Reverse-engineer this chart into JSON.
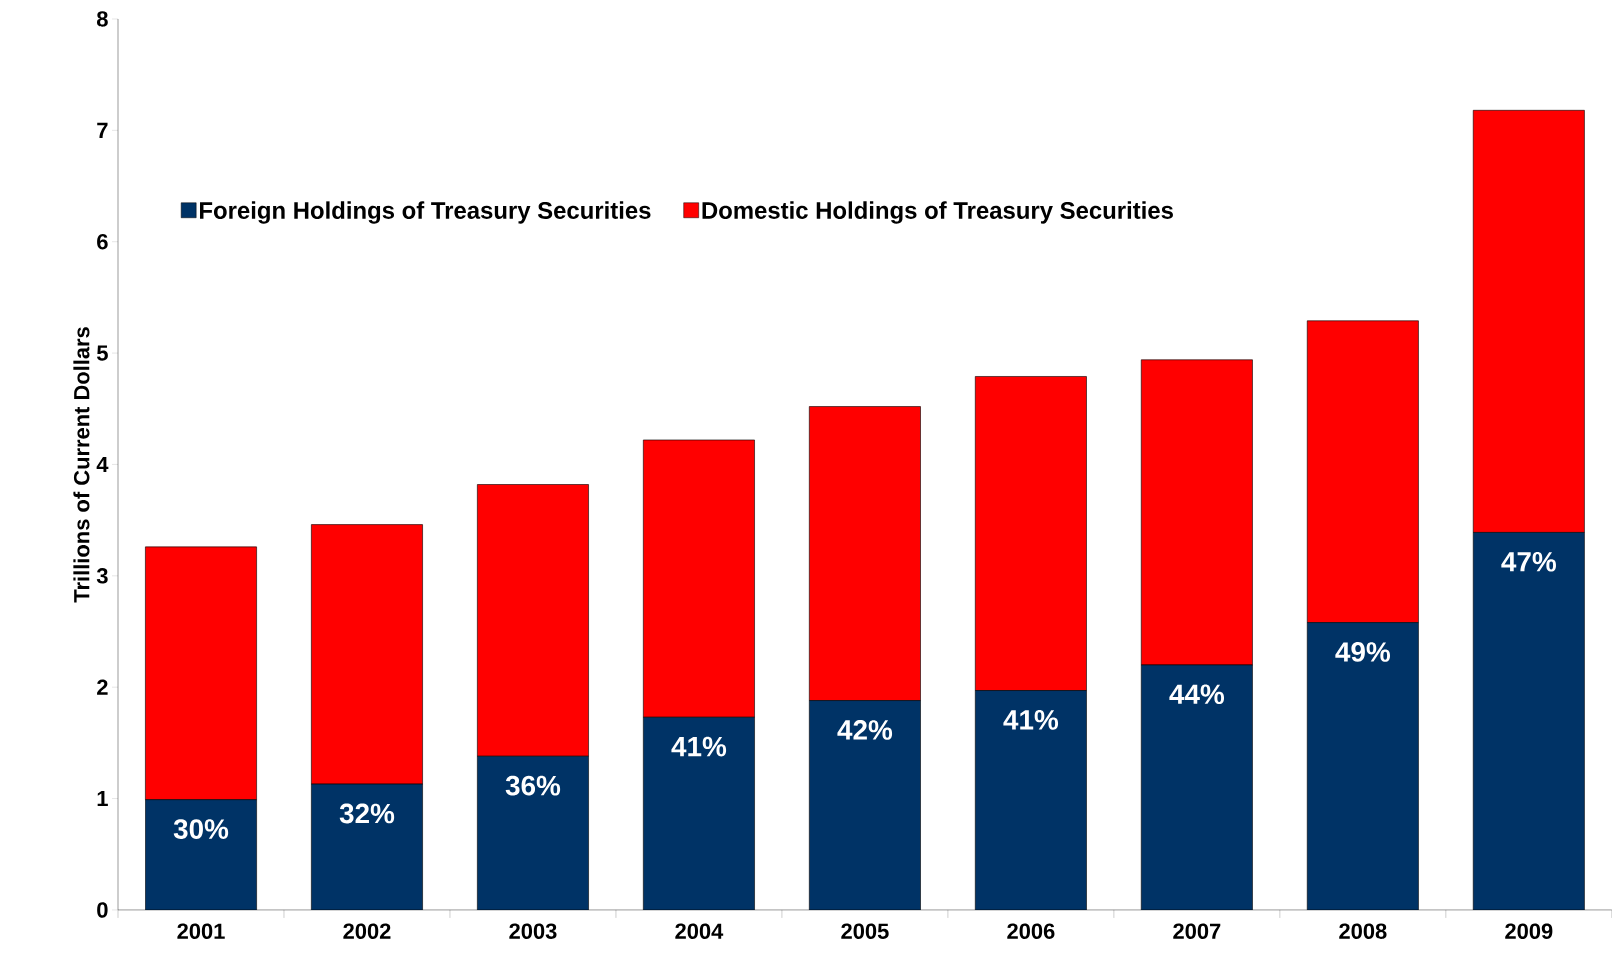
{
  "chart_data": {
    "type": "bar",
    "stacked": true,
    "ylabel": "Trillions of Current Dollars",
    "categories": [
      "2001",
      "2002",
      "2003",
      "2004",
      "2005",
      "2006",
      "2007",
      "2008",
      "2009"
    ],
    "series": [
      {
        "name": "Foreign Holdings of Treasury Securities",
        "color": "#003366",
        "values": [
          0.99,
          1.13,
          1.38,
          1.73,
          1.88,
          1.97,
          2.2,
          2.58,
          3.39
        ]
      },
      {
        "name": "Domestic Holdings of Treasury Securities",
        "color": "#ff0000",
        "values": [
          2.27,
          2.33,
          2.44,
          2.49,
          2.64,
          2.82,
          2.74,
          2.71,
          3.79
        ]
      }
    ],
    "annotations": [
      {
        "text": "30%",
        "x": "2001",
        "y": 0.99
      },
      {
        "text": "32%",
        "x": "2002",
        "y": 1.13
      },
      {
        "text": "36%",
        "x": "2003",
        "y": 1.38
      },
      {
        "text": "41%",
        "x": "2004",
        "y": 1.73
      },
      {
        "text": "42%",
        "x": "2005",
        "y": 1.88
      },
      {
        "text": "41%",
        "x": "2006",
        "y": 1.97
      },
      {
        "text": "44%",
        "x": "2007",
        "y": 2.2
      },
      {
        "text": "49%",
        "x": "2008",
        "y": 2.58
      },
      {
        "text": "47%",
        "x": "2009",
        "y": 3.39
      }
    ],
    "ylim": [
      0,
      8
    ],
    "yticks": [
      0,
      1,
      2,
      3,
      4,
      5,
      6,
      7,
      8
    ],
    "grid": false,
    "legend": "top left"
  }
}
